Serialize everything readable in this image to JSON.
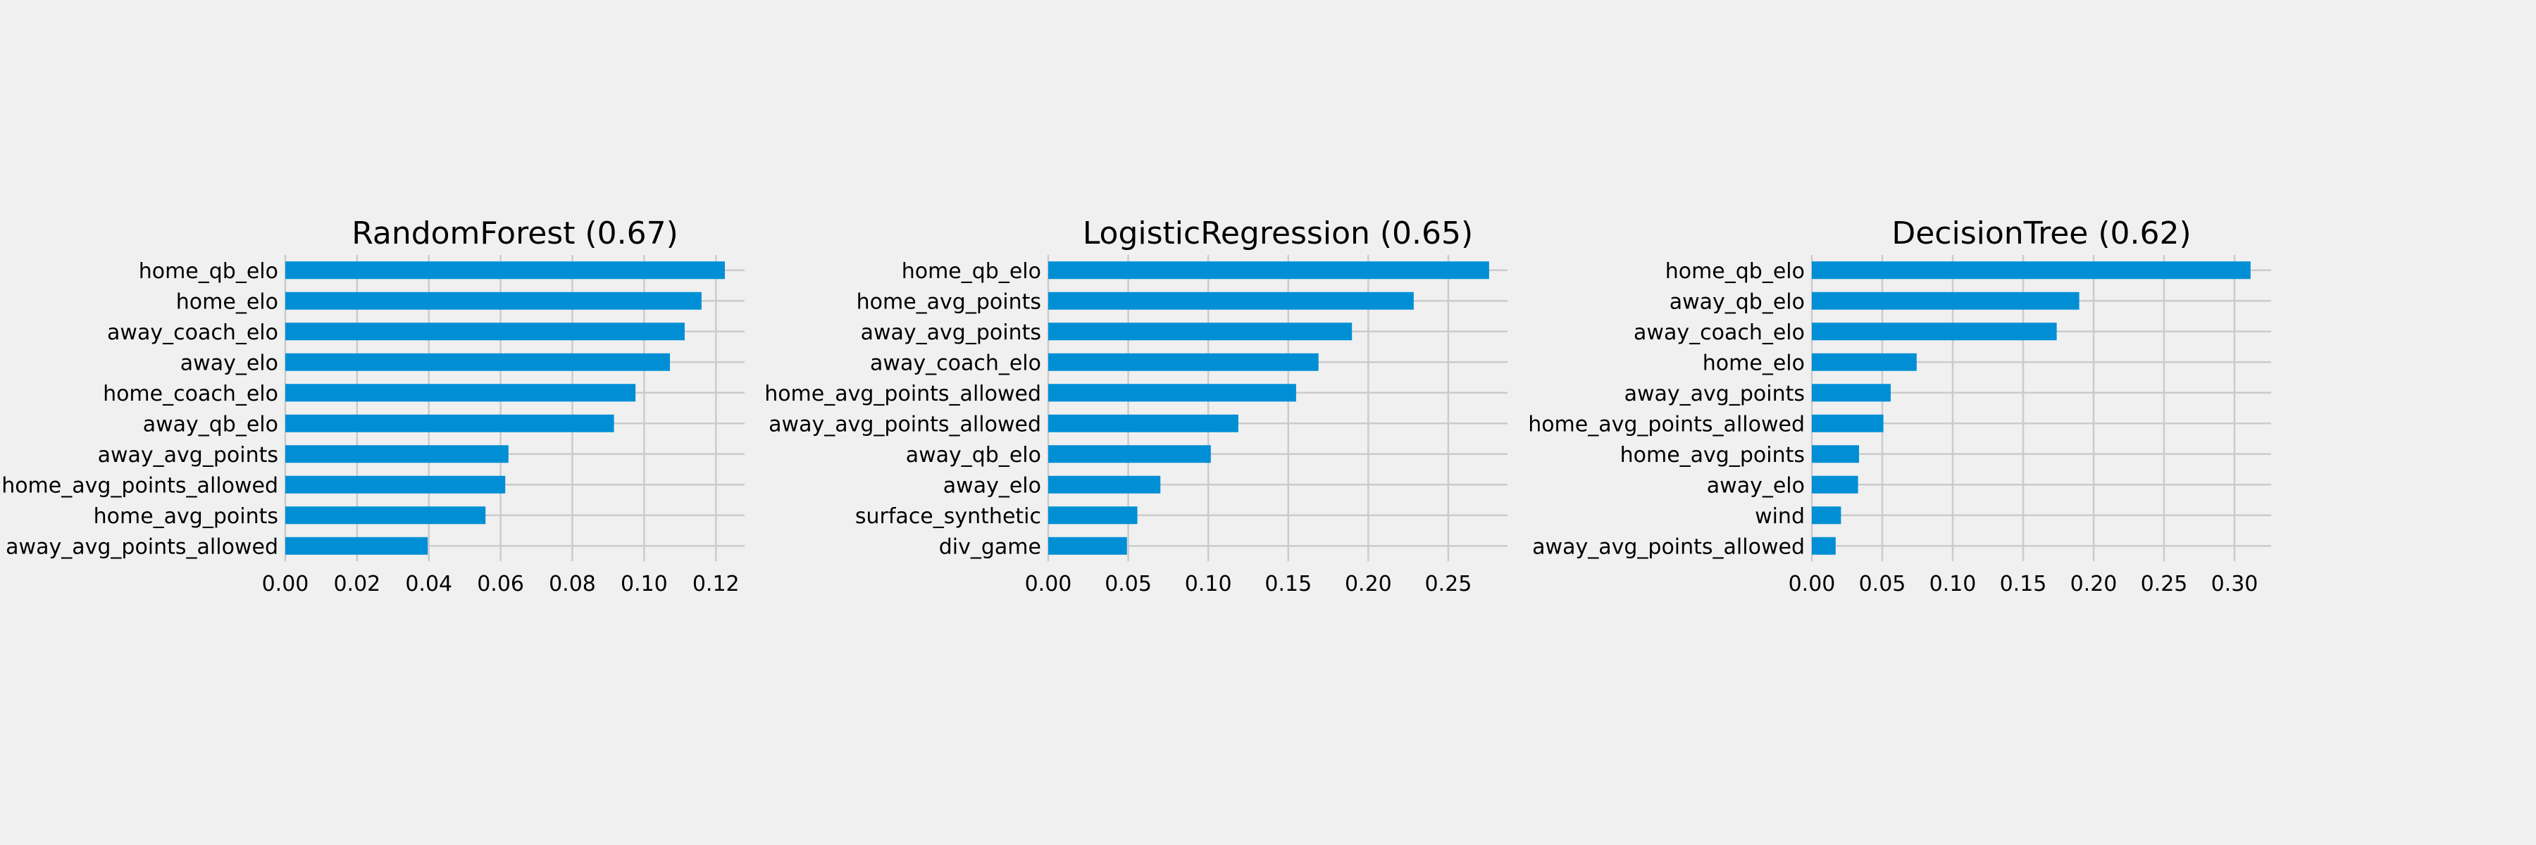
{
  "chart_data": [
    {
      "type": "bar",
      "orientation": "horizontal",
      "title": "RandomForest (0.67)",
      "xlabel": "",
      "ylabel": "",
      "grid": true,
      "bar_color": "#008fd5",
      "xlim": [
        0,
        0.128
      ],
      "xticks": [
        0,
        0.02,
        0.04,
        0.06,
        0.08,
        0.1,
        0.12
      ],
      "xtick_labels": [
        "0.00",
        "0.02",
        "0.04",
        "0.06",
        "0.08",
        "0.10",
        "0.12"
      ],
      "categories": [
        "home_qb_elo",
        "home_elo",
        "away_coach_elo",
        "away_elo",
        "home_coach_elo",
        "away_qb_elo",
        "away_avg_points",
        "home_avg_points_allowed",
        "home_avg_points",
        "away_avg_points_allowed"
      ],
      "values": [
        0.1225,
        0.116,
        0.1113,
        0.1072,
        0.0976,
        0.0916,
        0.0622,
        0.0613,
        0.0558,
        0.0397
      ]
    },
    {
      "type": "bar",
      "orientation": "horizontal",
      "title": "LogisticRegression (0.65)",
      "xlabel": "",
      "ylabel": "",
      "grid": true,
      "bar_color": "#008fd5",
      "xlim": [
        0,
        0.287
      ],
      "xticks": [
        0,
        0.05,
        0.1,
        0.15,
        0.2,
        0.25
      ],
      "xtick_labels": [
        "0.00",
        "0.05",
        "0.10",
        "0.15",
        "0.20",
        "0.25"
      ],
      "categories": [
        "home_qb_elo",
        "home_avg_points",
        "away_avg_points",
        "away_coach_elo",
        "home_avg_points_allowed",
        "away_avg_points_allowed",
        "away_qb_elo",
        "away_elo",
        "surface_synthetic",
        "div_game"
      ],
      "values": [
        0.2755,
        0.2284,
        0.1898,
        0.1689,
        0.1549,
        0.1188,
        0.1016,
        0.0701,
        0.0557,
        0.0492
      ]
    },
    {
      "type": "bar",
      "orientation": "horizontal",
      "title": "DecisionTree (0.62)",
      "xlabel": "",
      "ylabel": "",
      "grid": true,
      "bar_color": "#008fd5",
      "xlim": [
        0,
        0.326
      ],
      "xticks": [
        0,
        0.05,
        0.1,
        0.15,
        0.2,
        0.25,
        0.3
      ],
      "xtick_labels": [
        "0.00",
        "0.05",
        "0.10",
        "0.15",
        "0.20",
        "0.25",
        "0.30"
      ],
      "categories": [
        "home_qb_elo",
        "away_qb_elo",
        "away_coach_elo",
        "home_elo",
        "away_avg_points",
        "home_avg_points_allowed",
        "home_avg_points",
        "away_elo",
        "wind",
        "away_avg_points_allowed"
      ],
      "values": [
        0.3114,
        0.1898,
        0.1738,
        0.0744,
        0.056,
        0.0508,
        0.0335,
        0.0328,
        0.0207,
        0.0169
      ]
    }
  ]
}
